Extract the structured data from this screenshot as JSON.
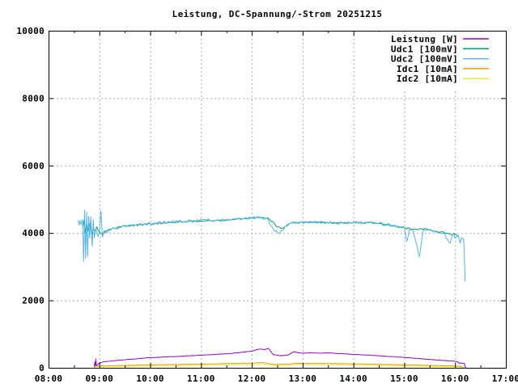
{
  "chart_data": {
    "type": "line",
    "title": "Leistung, DC-Spannung/-Strom 20251215",
    "xlabel": "",
    "ylabel": "",
    "xlim_hours": [
      8,
      17
    ],
    "ylim": [
      0,
      10000
    ],
    "grid": {
      "on": true,
      "color": "#a8a8a8",
      "dash": "2,3"
    },
    "frame_color": "#000000",
    "legend_position": "top-right-inside",
    "x_ticks": [
      [
        8,
        "08:00"
      ],
      [
        9,
        "09:00"
      ],
      [
        10,
        "10:00"
      ],
      [
        11,
        "11:00"
      ],
      [
        12,
        "12:00"
      ],
      [
        13,
        "13:00"
      ],
      [
        14,
        "14:00"
      ],
      [
        15,
        "15:00"
      ],
      [
        16,
        "16:00"
      ],
      [
        17,
        "17:00"
      ]
    ],
    "x_minor_ticks_hours": [
      8.5,
      9.5,
      10.5,
      11.5,
      12.5,
      13.5,
      14.5,
      15.5,
      16.5
    ],
    "y_ticks": [
      [
        0,
        "0"
      ],
      [
        2000,
        "2000"
      ],
      [
        4000,
        "4000"
      ],
      [
        6000,
        "6000"
      ],
      [
        8000,
        "8000"
      ],
      [
        10000,
        "10000"
      ]
    ],
    "series": [
      {
        "name": "Leistung [W]",
        "color": "#9400d3",
        "noise": 5,
        "points": [
          [
            8.9,
            0
          ],
          [
            8.91,
            170
          ],
          [
            8.92,
            50
          ],
          [
            8.93,
            260
          ],
          [
            8.94,
            70
          ],
          [
            8.97,
            90
          ],
          [
            9.0,
            150
          ],
          [
            9.1,
            180
          ],
          [
            9.25,
            205
          ],
          [
            9.5,
            240
          ],
          [
            9.75,
            270
          ],
          [
            10.0,
            300
          ],
          [
            10.25,
            320
          ],
          [
            10.5,
            335
          ],
          [
            10.75,
            355
          ],
          [
            11.0,
            370
          ],
          [
            11.25,
            395
          ],
          [
            11.5,
            415
          ],
          [
            11.75,
            450
          ],
          [
            12.0,
            490
          ],
          [
            12.08,
            530
          ],
          [
            12.17,
            560
          ],
          [
            12.25,
            540
          ],
          [
            12.33,
            575
          ],
          [
            12.42,
            390
          ],
          [
            12.55,
            360
          ],
          [
            12.7,
            368
          ],
          [
            12.83,
            480
          ],
          [
            12.92,
            448
          ],
          [
            13.0,
            435
          ],
          [
            13.17,
            450
          ],
          [
            13.33,
            432
          ],
          [
            13.5,
            442
          ],
          [
            13.67,
            428
          ],
          [
            13.83,
            412
          ],
          [
            14.0,
            398
          ],
          [
            14.25,
            378
          ],
          [
            14.5,
            356
          ],
          [
            14.75,
            332
          ],
          [
            15.0,
            306
          ],
          [
            15.25,
            278
          ],
          [
            15.5,
            248
          ],
          [
            15.75,
            218
          ],
          [
            16.0,
            192
          ],
          [
            16.05,
            178
          ],
          [
            16.07,
            142
          ],
          [
            16.18,
            130
          ],
          [
            16.2,
            35
          ],
          [
            16.22,
            0
          ]
        ]
      },
      {
        "name": "Udc1 [100mV]",
        "color": "#009e73",
        "noise": 26,
        "points": [
          [
            8.67,
            4150
          ],
          [
            8.7,
            4380
          ],
          [
            8.72,
            3980
          ],
          [
            8.75,
            4300
          ],
          [
            8.78,
            4050
          ],
          [
            8.82,
            4280
          ],
          [
            8.85,
            3950
          ],
          [
            8.88,
            4150
          ],
          [
            8.92,
            4050
          ],
          [
            8.95,
            4180
          ],
          [
            9.0,
            4030
          ],
          [
            9.05,
            3960
          ],
          [
            9.1,
            4060
          ],
          [
            9.17,
            4100
          ],
          [
            9.25,
            4130
          ],
          [
            9.33,
            4155
          ],
          [
            9.5,
            4195
          ],
          [
            9.67,
            4225
          ],
          [
            9.83,
            4245
          ],
          [
            10.0,
            4265
          ],
          [
            10.17,
            4285
          ],
          [
            10.33,
            4305
          ],
          [
            10.5,
            4315
          ],
          [
            10.67,
            4335
          ],
          [
            10.83,
            4345
          ],
          [
            11.0,
            4355
          ],
          [
            11.17,
            4365
          ],
          [
            11.33,
            4375
          ],
          [
            11.5,
            4385
          ],
          [
            11.67,
            4405
          ],
          [
            11.83,
            4415
          ],
          [
            12.0,
            4435
          ],
          [
            12.17,
            4450
          ],
          [
            12.33,
            4435
          ],
          [
            12.5,
            4180
          ],
          [
            12.58,
            4130
          ],
          [
            12.67,
            4200
          ],
          [
            12.75,
            4290
          ],
          [
            12.83,
            4315
          ],
          [
            13.0,
            4325
          ],
          [
            13.17,
            4315
          ],
          [
            13.33,
            4315
          ],
          [
            13.5,
            4305
          ],
          [
            13.67,
            4305
          ],
          [
            13.83,
            4295
          ],
          [
            14.0,
            4305
          ],
          [
            14.17,
            4295
          ],
          [
            14.33,
            4305
          ],
          [
            14.5,
            4275
          ],
          [
            14.67,
            4235
          ],
          [
            14.83,
            4195
          ],
          [
            15.0,
            4155
          ],
          [
            15.17,
            4105
          ],
          [
            15.33,
            4125
          ],
          [
            15.5,
            4085
          ],
          [
            15.67,
            4035
          ],
          [
            15.83,
            3995
          ],
          [
            16.0,
            3955
          ],
          [
            16.08,
            3905
          ]
        ]
      },
      {
        "name": "Udc2 [100mV]",
        "color": "#56b4e9",
        "noise": 38,
        "points": [
          [
            8.58,
            4380
          ],
          [
            8.6,
            4230
          ],
          [
            8.62,
            4370
          ],
          [
            8.64,
            4250
          ],
          [
            8.67,
            4400
          ],
          [
            8.69,
            3160
          ],
          [
            8.71,
            4680
          ],
          [
            8.73,
            3240
          ],
          [
            8.75,
            4620
          ],
          [
            8.77,
            3300
          ],
          [
            8.79,
            4500
          ],
          [
            8.81,
            3850
          ],
          [
            8.83,
            4480
          ],
          [
            8.86,
            3600
          ],
          [
            8.88,
            4400
          ],
          [
            8.9,
            3850
          ],
          [
            8.93,
            4150
          ],
          [
            8.97,
            3900
          ],
          [
            9.0,
            3980
          ],
          [
            9.03,
            4650
          ],
          [
            9.06,
            3880
          ],
          [
            9.1,
            4020
          ],
          [
            9.2,
            4080
          ],
          [
            9.3,
            4120
          ],
          [
            9.4,
            4160
          ],
          [
            9.5,
            4205
          ],
          [
            9.7,
            4235
          ],
          [
            9.9,
            4265
          ],
          [
            10.1,
            4295
          ],
          [
            10.3,
            4315
          ],
          [
            10.5,
            4335
          ],
          [
            10.7,
            4345
          ],
          [
            10.9,
            4365
          ],
          [
            11.1,
            4375
          ],
          [
            11.3,
            4385
          ],
          [
            11.5,
            4395
          ],
          [
            11.7,
            4415
          ],
          [
            11.9,
            4435
          ],
          [
            12.1,
            4455
          ],
          [
            12.3,
            4435
          ],
          [
            12.45,
            4050
          ],
          [
            12.55,
            3990
          ],
          [
            12.65,
            4180
          ],
          [
            12.8,
            4305
          ],
          [
            13.0,
            4315
          ],
          [
            13.2,
            4305
          ],
          [
            13.4,
            4325
          ],
          [
            13.6,
            4305
          ],
          [
            13.8,
            4295
          ],
          [
            14.0,
            4315
          ],
          [
            14.2,
            4295
          ],
          [
            14.4,
            4315
          ],
          [
            14.6,
            4265
          ],
          [
            14.8,
            4205
          ],
          [
            15.0,
            4165
          ],
          [
            15.05,
            3750
          ],
          [
            15.1,
            4100
          ],
          [
            15.17,
            4090
          ],
          [
            15.3,
            3300
          ],
          [
            15.37,
            4060
          ],
          [
            15.5,
            4100
          ],
          [
            15.65,
            4020
          ],
          [
            15.8,
            3960
          ],
          [
            15.9,
            3700
          ],
          [
            15.95,
            3950
          ],
          [
            16.0,
            3850
          ],
          [
            16.05,
            3920
          ],
          [
            16.1,
            3700
          ],
          [
            16.13,
            3870
          ],
          [
            16.17,
            3820
          ],
          [
            16.2,
            2550
          ]
        ]
      },
      {
        "name": "Idc1 [10mA]",
        "color": "#e69f00",
        "noise": 5,
        "points": [
          [
            8.9,
            0
          ],
          [
            8.92,
            50
          ],
          [
            9.0,
            55
          ],
          [
            9.5,
            70
          ],
          [
            10.0,
            85
          ],
          [
            10.5,
            100
          ],
          [
            11.0,
            110
          ],
          [
            11.5,
            125
          ],
          [
            12.0,
            140
          ],
          [
            12.2,
            155
          ],
          [
            12.45,
            100
          ],
          [
            12.7,
            108
          ],
          [
            12.85,
            135
          ],
          [
            13.0,
            130
          ],
          [
            13.5,
            128
          ],
          [
            14.0,
            118
          ],
          [
            14.5,
            104
          ],
          [
            15.0,
            88
          ],
          [
            15.5,
            70
          ],
          [
            16.0,
            55
          ],
          [
            16.1,
            45
          ],
          [
            16.2,
            0
          ]
        ]
      },
      {
        "name": "Idc2 [10mA]",
        "color": "#f0e442",
        "noise": 4,
        "points": [
          [
            8.9,
            0
          ],
          [
            8.92,
            28
          ],
          [
            9.0,
            34
          ],
          [
            9.5,
            45
          ],
          [
            10.0,
            55
          ],
          [
            10.5,
            65
          ],
          [
            11.0,
            75
          ],
          [
            11.5,
            85
          ],
          [
            12.0,
            95
          ],
          [
            12.2,
            105
          ],
          [
            12.45,
            70
          ],
          [
            12.7,
            76
          ],
          [
            12.85,
            95
          ],
          [
            13.0,
            90
          ],
          [
            13.5,
            88
          ],
          [
            14.0,
            80
          ],
          [
            14.5,
            70
          ],
          [
            15.0,
            58
          ],
          [
            15.5,
            45
          ],
          [
            16.0,
            32
          ],
          [
            16.1,
            25
          ],
          [
            16.2,
            0
          ]
        ]
      }
    ]
  }
}
